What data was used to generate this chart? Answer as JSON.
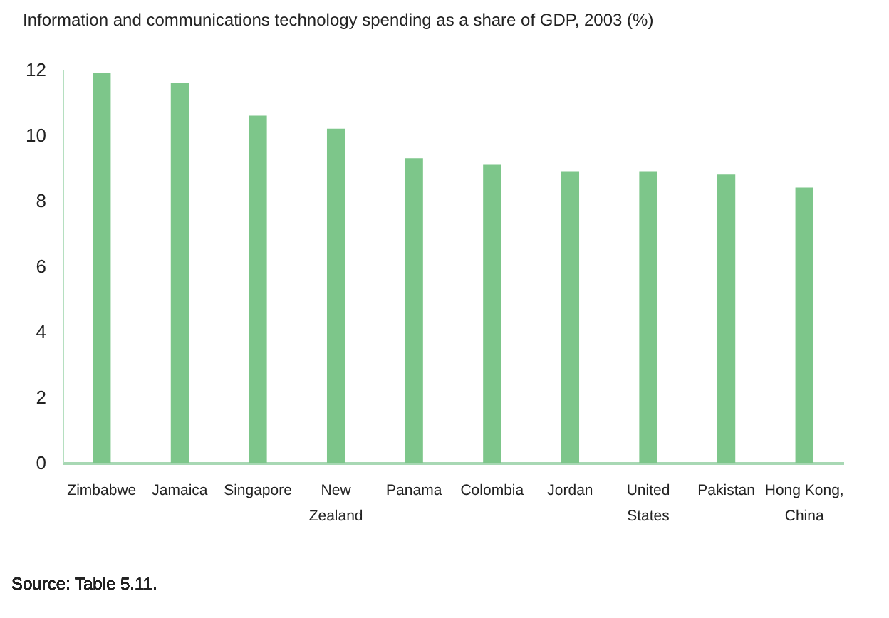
{
  "chart_data": {
    "type": "bar",
    "title": "Information and communications technology spending as a share of GDP, 2003 (%)",
    "categories": [
      "Zimbabwe",
      "Jamaica",
      "Singapore",
      "New Zealand",
      "Panama",
      "Colombia",
      "Jordan",
      "United States",
      "Pakistan",
      "Hong Kong, China"
    ],
    "values": [
      11.9,
      11.6,
      10.6,
      10.2,
      9.3,
      9.1,
      8.9,
      8.9,
      8.8,
      8.4
    ],
    "color": "#7dc68a",
    "ylim": [
      0,
      12
    ],
    "yticks": [
      0,
      2,
      4,
      6,
      8,
      10,
      12
    ],
    "grid": false,
    "annotations": [
      "Source: Table 5.11."
    ]
  }
}
